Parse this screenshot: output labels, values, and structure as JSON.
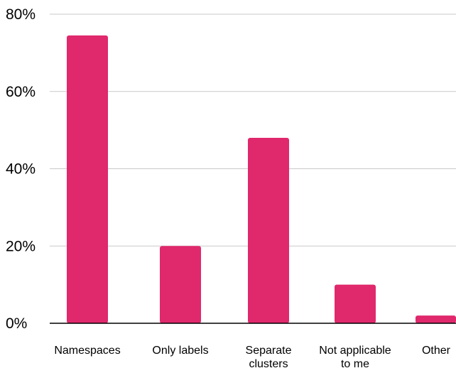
{
  "chart_data": {
    "type": "bar",
    "title": "",
    "xlabel": "",
    "ylabel": "",
    "categories": [
      [
        "Namespaces"
      ],
      [
        "Only labels"
      ],
      [
        "Separate",
        "clusters"
      ],
      [
        "Not applicable",
        "to me"
      ],
      [
        "Other"
      ]
    ],
    "values": [
      74.5,
      20,
      48,
      10,
      2
    ],
    "ylim": [
      0,
      80
    ],
    "yticks": [
      0,
      20,
      40,
      60,
      80
    ],
    "ytick_labels": [
      "0%",
      "20%",
      "40%",
      "60%",
      "80%"
    ],
    "grid": true,
    "legend": "none",
    "colors": {
      "bar": "#e0286c",
      "grid": "#c9c9c9",
      "axis": "#000000",
      "text": "#000000"
    }
  }
}
